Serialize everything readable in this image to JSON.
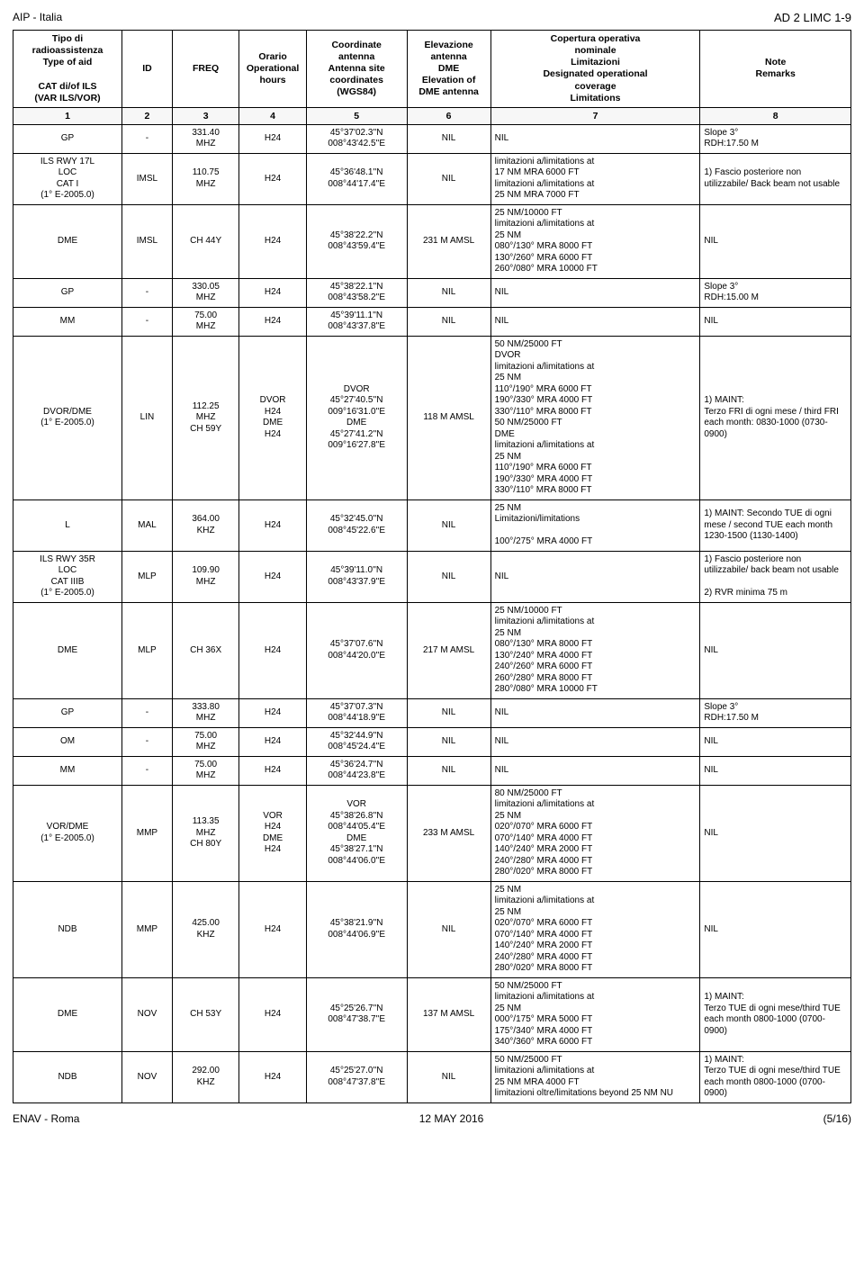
{
  "header": {
    "left": "AIP - Italia",
    "right": "AD 2 LIMC 1-9"
  },
  "columns": {
    "type": "Tipo di\nradioassistenza\nType of aid\n\nCAT di/of ILS\n(VAR ILS/VOR)",
    "id": "ID",
    "freq": "FREQ",
    "hours": "Orario\nOperational\nhours",
    "coords": "Coordinate\nantenna\nAntenna site\ncoordinates\n(WGS84)",
    "elev": "Elevazione\nantenna\nDME\nElevation of\nDME antenna",
    "limits": "Copertura operativa\nnominale\nLimitazioni\nDesignated operational\ncoverage\nLimitations",
    "notes": "Note\nRemarks"
  },
  "colnums": [
    "1",
    "2",
    "3",
    "4",
    "5",
    "6",
    "7",
    "8"
  ],
  "rows": [
    {
      "type": "GP",
      "id": "-",
      "freq": "331.40\nMHZ",
      "hours": "H24",
      "coords": "45°37'02.3''N\n008°43'42.5''E",
      "elev": "NIL",
      "limits": "NIL",
      "notes": "Slope 3°\nRDH:17.50 M"
    },
    {
      "type": "ILS RWY 17L\nLOC\nCAT I\n(1° E-2005.0)",
      "id": "IMSL",
      "freq": "110.75\nMHZ",
      "hours": "H24",
      "coords": "45°36'48.1''N\n008°44'17.4''E",
      "elev": "NIL",
      "limits": "limitazioni a/limitations at\n17 NM MRA 6000 FT\nlimitazioni a/limitations at\n25 NM MRA 7000 FT",
      "notes": "1) Fascio posteriore non utilizzabile/ Back beam not usable"
    },
    {
      "type": "DME",
      "id": "IMSL",
      "freq": "CH 44Y",
      "hours": "H24",
      "coords": "45°38'22.2''N\n008°43'59.4''E",
      "elev": "231 M AMSL",
      "limits": "25 NM/10000 FT\nlimitazioni a/limitations at\n25 NM\n080°/130° MRA 8000 FT\n130°/260° MRA 6000 FT\n260°/080° MRA 10000 FT",
      "notes": "NIL"
    },
    {
      "type": "GP",
      "id": "-",
      "freq": "330.05\nMHZ",
      "hours": "H24",
      "coords": "45°38'22.1''N\n008°43'58.2''E",
      "elev": "NIL",
      "limits": "NIL",
      "notes": "Slope 3°\nRDH:15.00 M"
    },
    {
      "type": "MM",
      "id": "-",
      "freq": "75.00\nMHZ",
      "hours": "H24",
      "coords": "45°39'11.1''N\n008°43'37.8''E",
      "elev": "NIL",
      "limits": "NIL",
      "notes": "NIL"
    },
    {
      "type": "DVOR/DME\n(1° E-2005.0)",
      "id": "LIN",
      "freq": "112.25\nMHZ\nCH 59Y",
      "hours": "DVOR\nH24\nDME\nH24",
      "coords": "DVOR\n45°27'40.5''N\n009°16'31.0''E\nDME\n45°27'41.2''N\n009°16'27.8''E",
      "elev": "118 M AMSL",
      "limits": "50 NM/25000 FT\nDVOR\nlimitazioni a/limitations at\n25 NM\n110°/190° MRA 6000 FT\n190°/330° MRA 4000 FT\n330°/110° MRA 8000 FT\n50 NM/25000 FT\nDME\nlimitazioni a/limitations at\n25 NM\n110°/190° MRA 6000 FT\n190°/330° MRA 4000 FT\n330°/110° MRA 8000 FT",
      "notes": "1) MAINT:\nTerzo FRI di ogni mese / third FRI each month: 0830-1000 (0730-0900)"
    },
    {
      "type": "L",
      "id": "MAL",
      "freq": "364.00\nKHZ",
      "hours": "H24",
      "coords": "45°32'45.0''N\n008°45'22.6''E",
      "elev": "NIL",
      "limits": "25 NM\nLimitazioni/limitations\n\n100°/275° MRA 4000 FT",
      "notes": "1) MAINT: Secondo TUE di ogni mese / second TUE each month 1230-1500 (1130-1400)"
    },
    {
      "type": "ILS RWY 35R\nLOC\nCAT IIIB\n(1° E-2005.0)",
      "id": "MLP",
      "freq": "109.90\nMHZ",
      "hours": "H24",
      "coords": "45°39'11.0''N\n008°43'37.9''E",
      "elev": "NIL",
      "limits": "NIL",
      "notes": "1) Fascio posteriore non utilizzabile/ back beam not usable\n\n2) RVR minima 75 m"
    },
    {
      "type": "DME",
      "id": "MLP",
      "freq": "CH 36X",
      "hours": "H24",
      "coords": "45°37'07.6''N\n008°44'20.0''E",
      "elev": "217 M AMSL",
      "limits": "25 NM/10000 FT\nlimitazioni a/limitations at\n25 NM\n080°/130° MRA 8000 FT\n130°/240° MRA 4000 FT\n240°/260° MRA 6000 FT\n260°/280° MRA 8000 FT\n280°/080° MRA 10000 FT",
      "notes": "NIL"
    },
    {
      "type": "GP",
      "id": "-",
      "freq": "333.80\nMHZ",
      "hours": "H24",
      "coords": "45°37'07.3''N\n008°44'18.9''E",
      "elev": "NIL",
      "limits": "NIL",
      "notes": "Slope 3°\nRDH:17.50 M"
    },
    {
      "type": "OM",
      "id": "-",
      "freq": "75.00\nMHZ",
      "hours": "H24",
      "coords": "45°32'44.9''N\n008°45'24.4''E",
      "elev": "NIL",
      "limits": "NIL",
      "notes": "NIL"
    },
    {
      "type": "MM",
      "id": "-",
      "freq": "75.00\nMHZ",
      "hours": "H24",
      "coords": "45°36'24.7''N\n008°44'23.8''E",
      "elev": "NIL",
      "limits": "NIL",
      "notes": "NIL"
    },
    {
      "type": "VOR/DME\n(1° E-2005.0)",
      "id": "MMP",
      "freq": "113.35\nMHZ\nCH 80Y",
      "hours": "VOR\nH24\nDME\nH24",
      "coords": "VOR\n45°38'26.8''N\n008°44'05.4''E\nDME\n45°38'27.1''N\n008°44'06.0''E",
      "elev": "233 M AMSL",
      "limits": "80 NM/25000 FT\nlimitazioni a/limitations at\n25 NM\n020°/070° MRA 6000 FT\n070°/140° MRA 4000 FT\n140°/240° MRA 2000 FT\n240°/280° MRA 4000 FT\n280°/020° MRA 8000 FT",
      "notes": "NIL"
    },
    {
      "type": "NDB",
      "id": "MMP",
      "freq": "425.00\nKHZ",
      "hours": "H24",
      "coords": "45°38'21.9''N\n008°44'06.9''E",
      "elev": "NIL",
      "limits": "25 NM\nlimitazioni a/limitations at\n25 NM\n020°/070° MRA 6000 FT\n070°/140° MRA 4000 FT\n140°/240° MRA 2000 FT\n240°/280° MRA 4000 FT\n280°/020° MRA 8000 FT",
      "notes": "NIL"
    },
    {
      "type": "DME",
      "id": "NOV",
      "freq": "CH 53Y",
      "hours": "H24",
      "coords": "45°25'26.7''N\n008°47'38.7''E",
      "elev": "137 M AMSL",
      "limits": "50 NM/25000 FT\nlimitazioni a/limitations at\n25 NM\n000°/175° MRA 5000 FT\n175°/340° MRA 4000 FT\n340°/360° MRA 6000 FT",
      "notes": "1) MAINT:\nTerzo TUE di ogni mese/third TUE each month 0800-1000 (0700-0900)"
    },
    {
      "type": "NDB",
      "id": "NOV",
      "freq": "292.00\nKHZ",
      "hours": "H24",
      "coords": "45°25'27.0''N\n008°47'37.8''E",
      "elev": "NIL",
      "limits": "50 NM/25000 FT\nlimitazioni a/limitations at\n25 NM MRA 4000 FT\nlimitazioni oltre/limitations beyond 25 NM NU",
      "notes": "1) MAINT:\nTerzo TUE di ogni mese/third TUE each month 0800-1000 (0700-0900)"
    }
  ],
  "footer": {
    "left": "ENAV - Roma",
    "center": "12 MAY 2016",
    "right": "(5/16)"
  }
}
